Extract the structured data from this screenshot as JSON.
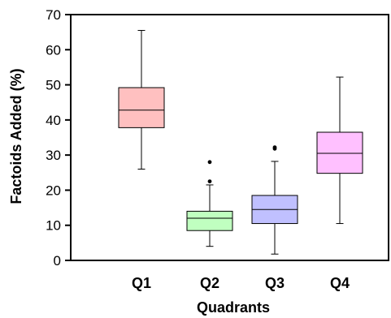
{
  "chart_data": {
    "type": "box",
    "xlabel": "Quadrants",
    "ylabel": "Factoids Added (%)",
    "ylim": [
      0,
      70
    ],
    "yticks": [
      0,
      10,
      20,
      30,
      40,
      50,
      60,
      70
    ],
    "grid": false,
    "categories": [
      "Q1",
      "Q2",
      "Q3",
      "Q4"
    ],
    "boxes": [
      {
        "category": "Q1",
        "whisker_low": 26,
        "q1": 37.8,
        "median": 42.8,
        "q3": 49.2,
        "whisker_high": 65.5,
        "outliers": [],
        "color": "#ffc0c0"
      },
      {
        "category": "Q2",
        "whisker_low": 4,
        "q1": 8.5,
        "median": 12,
        "q3": 14,
        "whisker_high": 21.5,
        "outliers": [
          22.5,
          28
        ],
        "color": "#c0ffc0"
      },
      {
        "category": "Q3",
        "whisker_low": 1.8,
        "q1": 10.5,
        "median": 14.5,
        "q3": 18.5,
        "whisker_high": 28.2,
        "outliers": [
          31.8,
          32.2
        ],
        "color": "#c0c0ff"
      },
      {
        "category": "Q4",
        "whisker_low": 10.5,
        "q1": 24.8,
        "median": 30.5,
        "q3": 36.5,
        "whisker_high": 52.2,
        "outliers": [],
        "color": "#ffc0ff"
      }
    ]
  }
}
